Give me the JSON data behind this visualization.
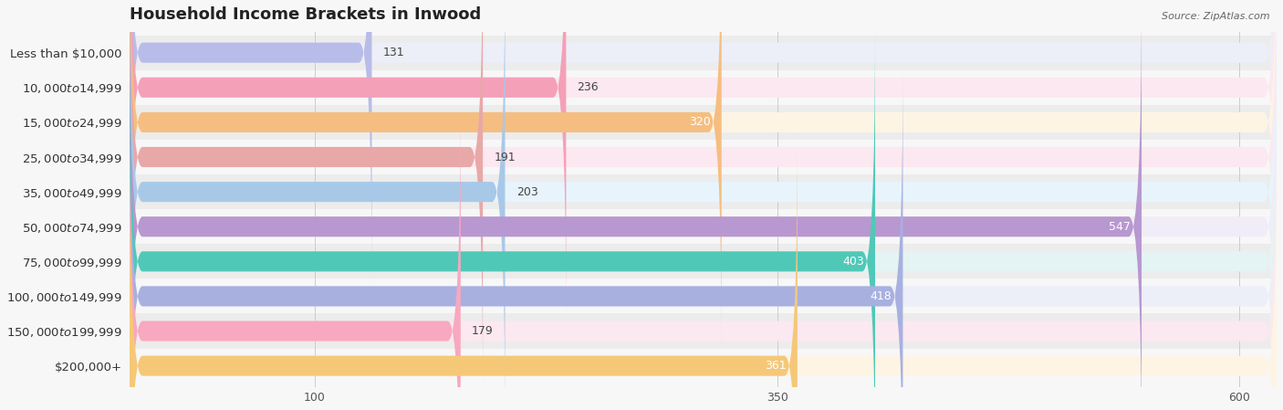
{
  "title": "Household Income Brackets in Inwood",
  "source": "Source: ZipAtlas.com",
  "categories": [
    "Less than $10,000",
    "$10,000 to $14,999",
    "$15,000 to $24,999",
    "$25,000 to $34,999",
    "$35,000 to $49,999",
    "$50,000 to $74,999",
    "$75,000 to $99,999",
    "$100,000 to $149,999",
    "$150,000 to $199,999",
    "$200,000+"
  ],
  "values": [
    131,
    236,
    320,
    191,
    203,
    547,
    403,
    418,
    179,
    361
  ],
  "bar_colors": [
    "#b8bce8",
    "#f4a0b8",
    "#f5be80",
    "#e8a8a8",
    "#a8c8e8",
    "#b898d0",
    "#50c8b8",
    "#a8b0e0",
    "#f8a8c0",
    "#f5c878"
  ],
  "bar_bg_colors": [
    "#eceef8",
    "#fce8f0",
    "#fef4e4",
    "#fce8f0",
    "#e8f4fc",
    "#f0ecf8",
    "#e4f4f4",
    "#eceef8",
    "#fce8f0",
    "#fef4e4"
  ],
  "xlim_max": 620,
  "xticks": [
    100,
    350,
    600
  ],
  "bg_color": "#f7f7f7",
  "title_fontsize": 13,
  "label_fontsize": 9.5,
  "value_fontsize": 9,
  "bar_height": 0.58,
  "value_white_threshold": 310
}
